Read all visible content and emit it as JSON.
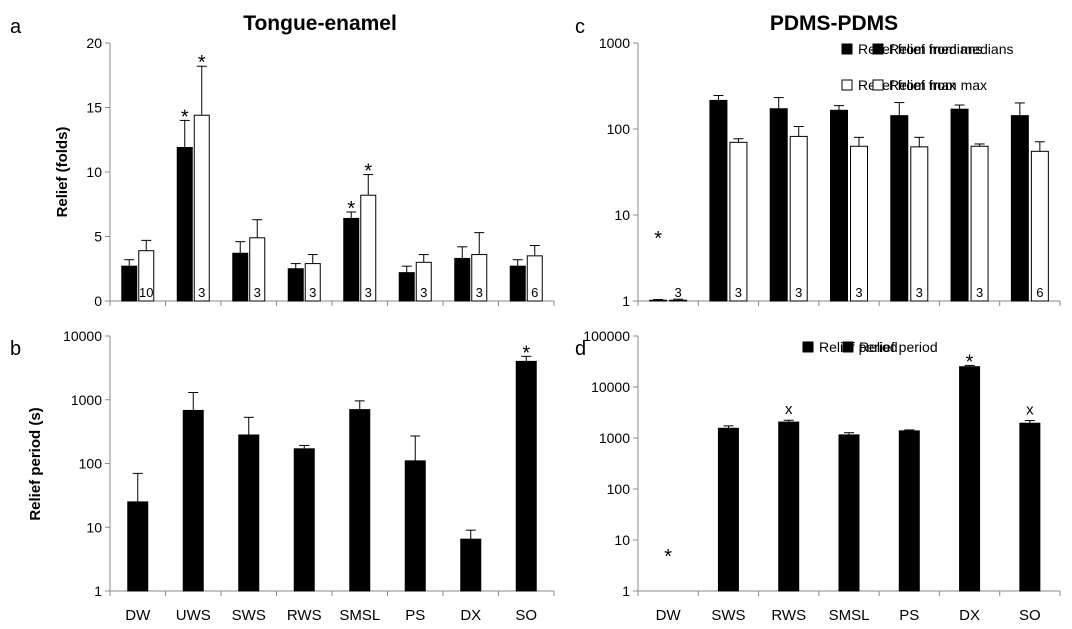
{
  "chart_data": [
    {
      "panel": "a",
      "type": "bar",
      "title": "Tongue-enamel",
      "ylabel": "Relief (folds)",
      "yscale": "linear",
      "ylim": [
        0,
        20
      ],
      "yticks": [
        "0",
        "5",
        "10",
        "15",
        "20"
      ],
      "categories": [
        "DW",
        "UWS",
        "SWS",
        "RWS",
        "SMSL",
        "PS",
        "DX",
        "SO"
      ],
      "series": [
        {
          "name": "Relief from medians",
          "color": "#000000",
          "values": [
            2.7,
            11.9,
            3.7,
            2.5,
            6.4,
            2.2,
            3.3,
            2.7
          ],
          "errors": [
            0.5,
            2.1,
            0.9,
            0.4,
            0.5,
            0.5,
            0.9,
            0.5
          ]
        },
        {
          "name": "Relief from max",
          "color": "#ffffff",
          "values": [
            3.9,
            14.4,
            4.9,
            2.9,
            8.2,
            3.0,
            3.6,
            3.5
          ],
          "errors": [
            0.8,
            3.8,
            1.4,
            0.7,
            1.6,
            0.6,
            1.7,
            0.8
          ]
        }
      ],
      "n_labels": [
        "10",
        "3",
        "3",
        "3",
        "3",
        "3",
        "3",
        "6"
      ],
      "significance": [
        {
          "category": "UWS",
          "series": 0,
          "text": "*"
        },
        {
          "category": "UWS",
          "series": 1,
          "text": "*"
        },
        {
          "category": "SMSL",
          "series": 0,
          "text": "*"
        },
        {
          "category": "SMSL",
          "series": 1,
          "text": "*"
        }
      ],
      "legend_position": "top-right",
      "grid": false
    },
    {
      "panel": "b",
      "type": "bar",
      "ylabel": "Relief period (s)",
      "yscale": "log",
      "ylim": [
        1,
        10000
      ],
      "yticks": [
        "1",
        "10",
        "100",
        "1000",
        "10000"
      ],
      "categories": [
        "DW",
        "UWS",
        "SWS",
        "RWS",
        "SMSL",
        "PS",
        "DX",
        "SO"
      ],
      "series": [
        {
          "name": "Relief period",
          "color": "#000000",
          "values": [
            25,
            680,
            280,
            170,
            700,
            110,
            6.5,
            4000
          ],
          "errors": [
            45,
            620,
            250,
            22,
            260,
            160,
            2.5,
            800
          ]
        }
      ],
      "significance": [
        {
          "category": "SO",
          "series": 0,
          "text": "*"
        }
      ],
      "legend_position": "top-right",
      "grid": false
    },
    {
      "panel": "c",
      "type": "bar",
      "title": "PDMS-PDMS",
      "yscale": "log",
      "ylim": [
        1,
        1000
      ],
      "yticks": [
        "1",
        "10",
        "100",
        "1000"
      ],
      "categories": [
        "DW",
        "SWS",
        "RWS",
        "SMSL",
        "PS",
        "DX",
        "SO"
      ],
      "series": [
        {
          "name": "Relief from medians",
          "color": "#000000",
          "values": [
            1.02,
            215,
            172,
            165,
            143,
            170,
            143
          ],
          "errors": [
            0.02,
            30,
            60,
            22,
            60,
            20,
            58
          ]
        },
        {
          "name": "Relief from max",
          "color": "#ffffff",
          "values": [
            1.02,
            70,
            82,
            63,
            62,
            63,
            55
          ],
          "errors": [
            0.03,
            7,
            25,
            17,
            18,
            4,
            16
          ]
        }
      ],
      "n_labels": [
        "3",
        "3",
        "3",
        "3",
        "3",
        "3",
        "6"
      ],
      "significance": [
        {
          "category": "DW",
          "series": 0,
          "text": "*"
        }
      ],
      "legend_position": "top-right",
      "grid": false
    },
    {
      "panel": "d",
      "type": "bar",
      "yscale": "log",
      "ylim": [
        1,
        100000
      ],
      "yticks": [
        "1",
        "10",
        "100",
        "1000",
        "10000",
        "100000"
      ],
      "categories": [
        "DW",
        "SWS",
        "RWS",
        "SMSL",
        "PS",
        "DX",
        "SO"
      ],
      "series": [
        {
          "name": "Relief period",
          "color": "#000000",
          "values": [
            null,
            1550,
            2050,
            1150,
            1380,
            25000,
            1950
          ],
          "errors": [
            null,
            180,
            180,
            120,
            60,
            1500,
            250
          ]
        }
      ],
      "significance": [
        {
          "category": "DW",
          "series": 0,
          "text": "*"
        },
        {
          "category": "RWS",
          "series": 0,
          "text": "x"
        },
        {
          "category": "DX",
          "series": 0,
          "text": "*"
        },
        {
          "category": "SO",
          "series": 0,
          "text": "x"
        }
      ],
      "legend_position": "top-center",
      "grid": false
    }
  ]
}
